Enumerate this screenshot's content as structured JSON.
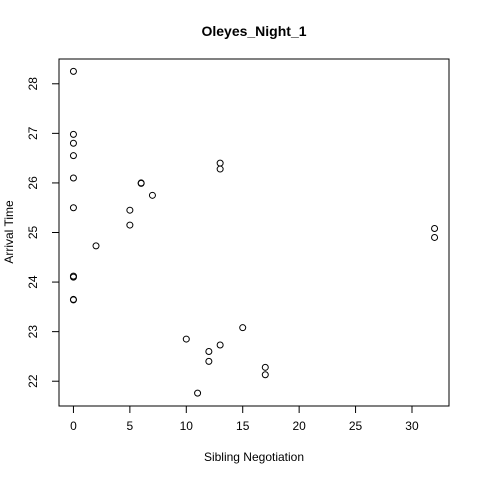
{
  "chart_data": {
    "type": "scatter",
    "title": "Oleyes_Night_1",
    "xlabel": "Sibling Negotiation",
    "ylabel": "Arrival Time",
    "xlim": [
      -1.28,
      33.28
    ],
    "ylim": [
      21.5,
      28.5
    ],
    "xticks": [
      0,
      5,
      10,
      15,
      20,
      25,
      30
    ],
    "yticks": [
      22,
      23,
      24,
      25,
      26,
      27,
      28
    ],
    "grid": false,
    "points": [
      {
        "x": 0,
        "y": 28.25
      },
      {
        "x": 0,
        "y": 26.98
      },
      {
        "x": 0,
        "y": 26.8
      },
      {
        "x": 0,
        "y": 26.55
      },
      {
        "x": 0,
        "y": 26.1
      },
      {
        "x": 0,
        "y": 25.5
      },
      {
        "x": 0,
        "y": 24.12
      },
      {
        "x": 0,
        "y": 24.1
      },
      {
        "x": 0,
        "y": 23.65
      },
      {
        "x": 0,
        "y": 23.64
      },
      {
        "x": 2,
        "y": 24.73
      },
      {
        "x": 5,
        "y": 25.45
      },
      {
        "x": 5,
        "y": 25.15
      },
      {
        "x": 6,
        "y": 26.0
      },
      {
        "x": 6,
        "y": 25.99
      },
      {
        "x": 7,
        "y": 25.75
      },
      {
        "x": 10,
        "y": 22.85
      },
      {
        "x": 11,
        "y": 21.76
      },
      {
        "x": 12,
        "y": 22.6
      },
      {
        "x": 12,
        "y": 22.4
      },
      {
        "x": 13,
        "y": 26.4
      },
      {
        "x": 13,
        "y": 26.28
      },
      {
        "x": 13,
        "y": 22.73
      },
      {
        "x": 15,
        "y": 23.08
      },
      {
        "x": 17,
        "y": 22.28
      },
      {
        "x": 17,
        "y": 22.13
      },
      {
        "x": 32,
        "y": 25.08
      },
      {
        "x": 32,
        "y": 24.9
      }
    ]
  }
}
